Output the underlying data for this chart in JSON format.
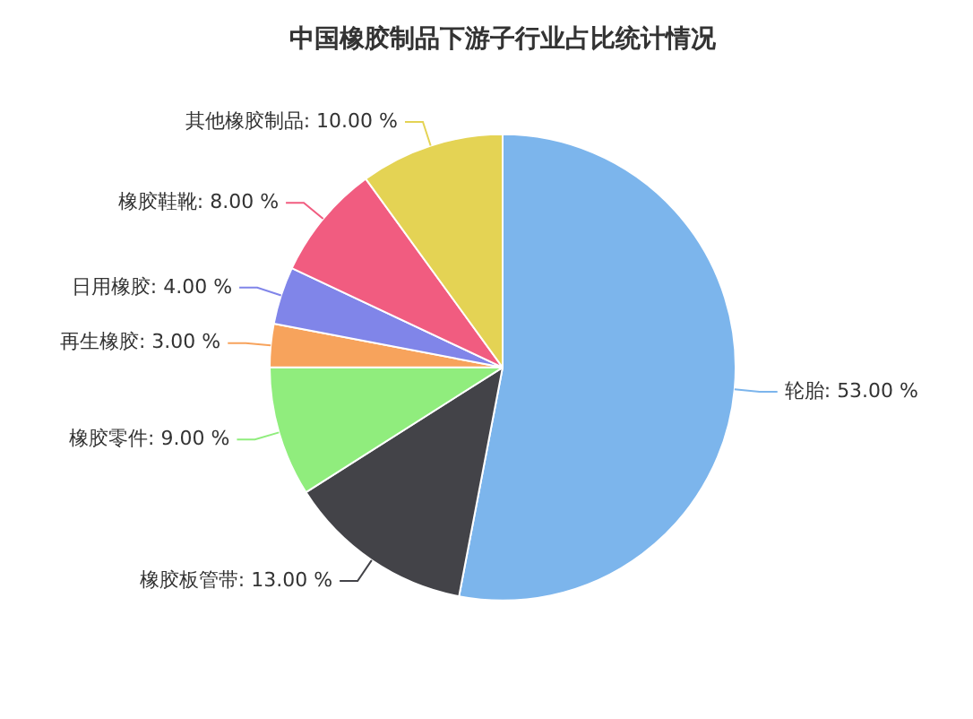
{
  "chart_data": {
    "type": "pie",
    "title": "中国橡胶制品下游子行业占比统计情况",
    "categories": [
      "轮胎",
      "橡胶板管带",
      "橡胶零件",
      "再生橡胶",
      "日用橡胶",
      "橡胶鞋靴",
      "其他橡胶制品"
    ],
    "values": [
      53,
      13,
      9,
      3,
      4,
      8,
      10
    ],
    "value_labels": [
      "53.00 %",
      "13.00 %",
      "9.00 %",
      "3.00 %",
      "4.00 %",
      "8.00 %",
      "10.00 %"
    ],
    "colors": [
      "#7cb5ec",
      "#434348",
      "#90ed7d",
      "#f7a35c",
      "#8085e9",
      "#f15c80",
      "#e4d354"
    ]
  }
}
